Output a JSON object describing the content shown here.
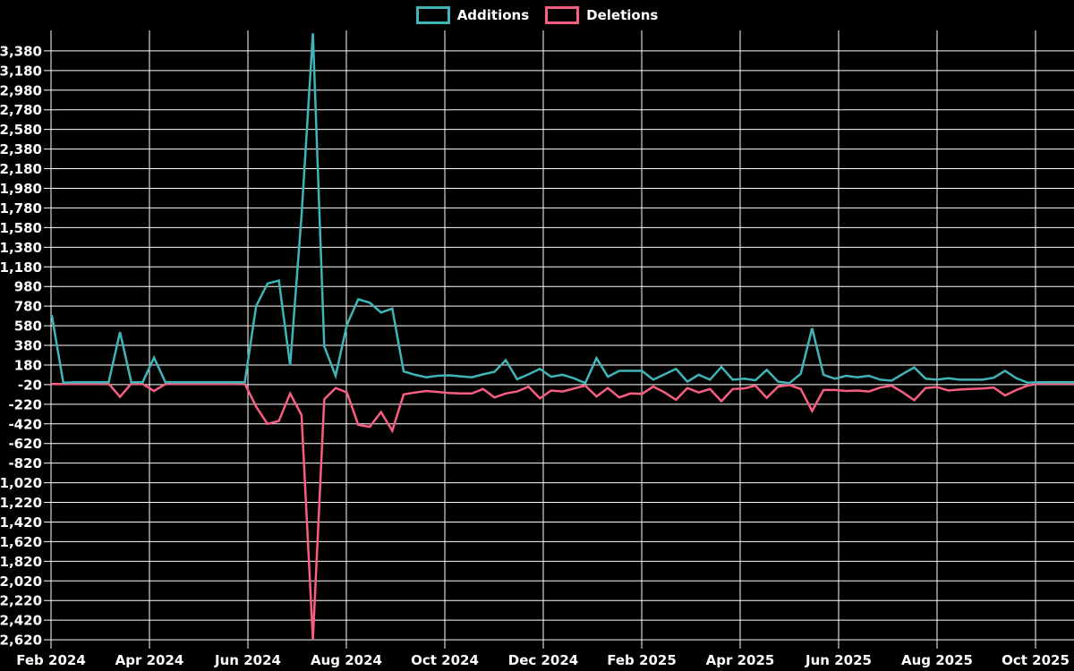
{
  "chart_data": {
    "type": "line",
    "title": "",
    "legend_position": "top-center",
    "background": "#000000",
    "grid": true,
    "grid_color": "#ffffff",
    "text_color": "#ffffff",
    "x_unit": "week",
    "x_tick_labels": [
      "Feb 2024",
      "Apr 2024",
      "Jun 2024",
      "Aug 2024",
      "Oct 2024",
      "Dec 2024",
      "Feb 2025",
      "Apr 2025",
      "Jun 2025",
      "Aug 2025",
      "Oct 2025"
    ],
    "y_ticks": [
      3380,
      3180,
      2980,
      2780,
      2580,
      2380,
      2180,
      1980,
      1780,
      1580,
      1380,
      1180,
      980,
      780,
      580,
      380,
      180,
      -20,
      -220,
      -420,
      -620,
      -820,
      -1020,
      -1220,
      -1420,
      -1620,
      -1820,
      -2020,
      -2220,
      -2420,
      -2620
    ],
    "ylim": [
      -2680,
      3590
    ],
    "series": [
      {
        "name": "Additions",
        "color": "#40b5b8",
        "values": [
          680,
          0,
          5,
          5,
          5,
          5,
          515,
          5,
          5,
          255,
          5,
          5,
          5,
          5,
          5,
          5,
          5,
          5,
          780,
          1010,
          1040,
          175,
          1700,
          3560,
          370,
          70,
          590,
          850,
          815,
          715,
          755,
          115,
          80,
          55,
          70,
          75,
          65,
          55,
          85,
          110,
          230,
          35,
          85,
          140,
          60,
          80,
          45,
          -5,
          250,
          60,
          120,
          120,
          120,
          30,
          85,
          140,
          10,
          80,
          30,
          160,
          30,
          40,
          25,
          130,
          10,
          -5,
          90,
          555,
          80,
          40,
          70,
          55,
          70,
          30,
          20,
          90,
          155,
          40,
          30,
          45,
          30,
          30,
          30,
          50,
          120,
          45,
          0,
          5,
          5,
          5,
          5
        ]
      },
      {
        "name": "Deletions",
        "color": "#f85e80",
        "values": [
          -15,
          -15,
          -15,
          -15,
          -15,
          -10,
          -145,
          -10,
          -15,
          -85,
          -15,
          -15,
          -15,
          -15,
          -15,
          -15,
          -15,
          -10,
          -245,
          -420,
          -390,
          -110,
          -330,
          -2620,
          -170,
          -55,
          -100,
          -430,
          -450,
          -300,
          -490,
          -120,
          -100,
          -85,
          -95,
          -105,
          -110,
          -110,
          -65,
          -150,
          -110,
          -90,
          -40,
          -160,
          -80,
          -90,
          -60,
          -30,
          -140,
          -55,
          -150,
          -110,
          -115,
          -40,
          -100,
          -175,
          -55,
          -100,
          -65,
          -190,
          -65,
          -60,
          -30,
          -155,
          -40,
          -25,
          -65,
          -290,
          -75,
          -75,
          -85,
          -80,
          -90,
          -50,
          -30,
          -100,
          -180,
          -55,
          -45,
          -80,
          -70,
          -65,
          -60,
          -50,
          -130,
          -75,
          -30,
          -10,
          -10,
          -10,
          -10
        ]
      }
    ]
  }
}
